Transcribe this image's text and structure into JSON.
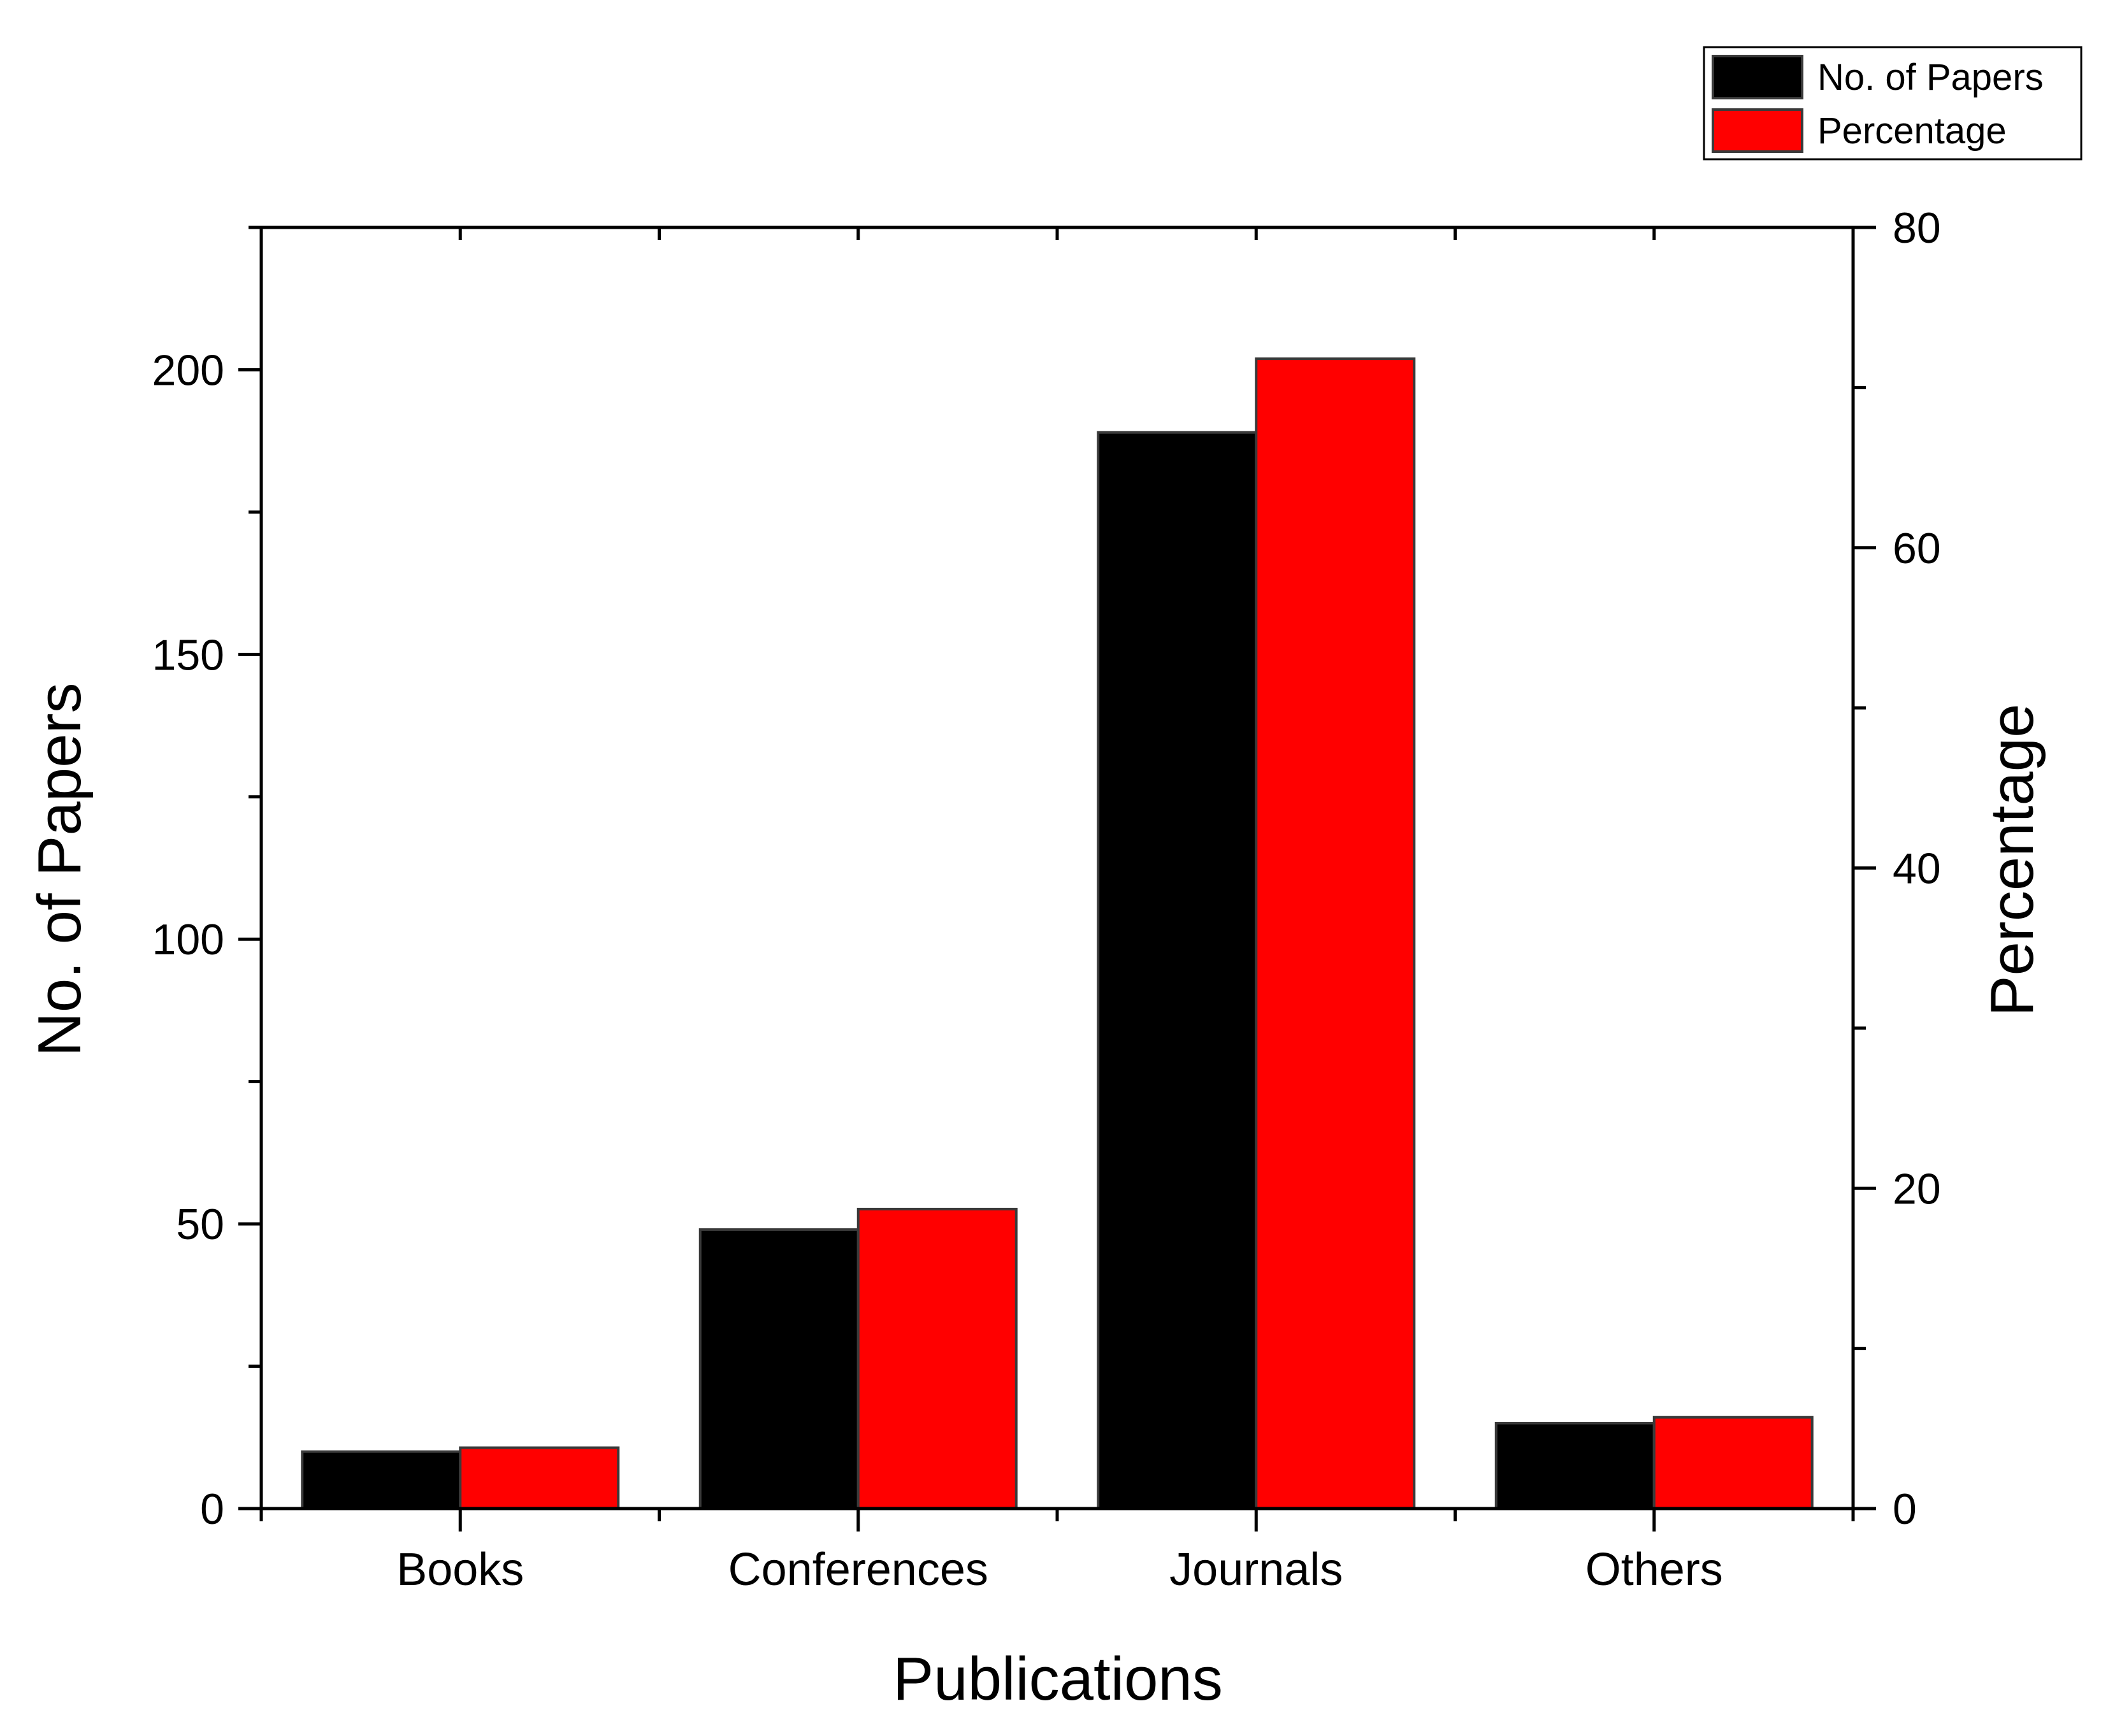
{
  "chart_data": {
    "type": "bar",
    "title": "",
    "xlabel": "Publications",
    "ylabel": "No. of Papers",
    "y2label": "Percentage",
    "categories": [
      "Books",
      "Conferences",
      "Journals",
      "Others"
    ],
    "series": [
      {
        "name": "No. of Papers",
        "axis": "left",
        "color": "#000000",
        "values": [
          10,
          49,
          189,
          15
        ]
      },
      {
        "name": "Percentage",
        "axis": "right",
        "color": "#ff0000",
        "values": [
          3.8,
          18.7,
          71.8,
          5.7
        ]
      }
    ],
    "ylim": [
      0,
      225
    ],
    "y_ticks": [
      0,
      50,
      100,
      150,
      200
    ],
    "y2lim": [
      0,
      80
    ],
    "y2_ticks": [
      0,
      20,
      40,
      60,
      80
    ],
    "legend_position": "top-right",
    "grid": false
  }
}
